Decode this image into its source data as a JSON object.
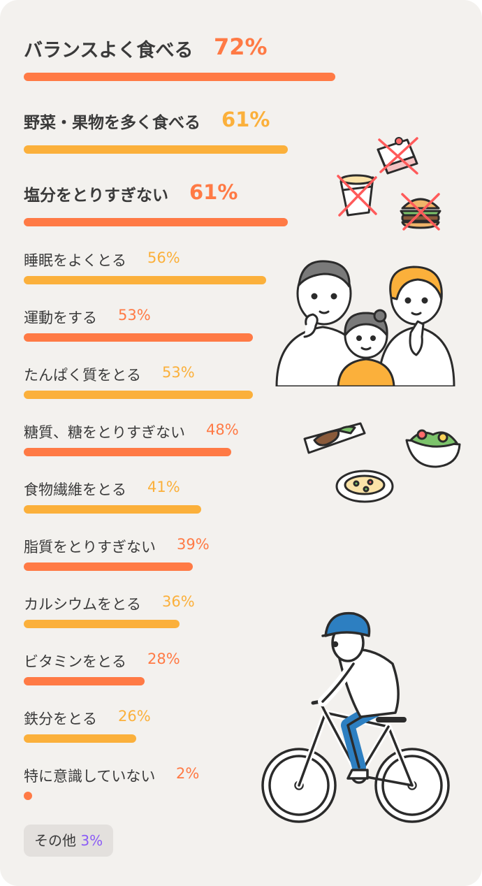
{
  "colors": {
    "accent_orange": "#ff7a45",
    "accent_yellow": "#fbb03b",
    "other_accent": "#8b5cf6",
    "background": "#f3f1ee"
  },
  "chart_data": {
    "type": "bar",
    "orientation": "horizontal",
    "categories": [
      "バランスよく食べる",
      "野菜・果物を多く食べる",
      "塩分をとりすぎない",
      "睡眠をよくとる",
      "運動をする",
      "たんぱく質をとる",
      "糖質、糖をとりすぎない",
      "食物繊維をとる",
      "脂質をとりすぎない",
      "カルシウムをとる",
      "ビタミンをとる",
      "鉄分をとる",
      "特に意識していない"
    ],
    "values": [
      72,
      61,
      61,
      56,
      53,
      53,
      48,
      41,
      39,
      36,
      28,
      26,
      2
    ],
    "value_labels": [
      "72%",
      "61%",
      "61%",
      "56%",
      "53%",
      "53%",
      "48%",
      "41%",
      "39%",
      "36%",
      "28%",
      "26%",
      "2%"
    ],
    "bar_colors": [
      "#ff7a45",
      "#fbb03b",
      "#ff7a45",
      "#fbb03b",
      "#ff7a45",
      "#fbb03b",
      "#ff7a45",
      "#fbb03b",
      "#ff7a45",
      "#fbb03b",
      "#ff7a45",
      "#fbb03b",
      "#ff7a45"
    ],
    "unit": "%",
    "xlim": [
      0,
      100
    ],
    "grid": false,
    "legend": "none"
  },
  "other": {
    "label": "その他",
    "value": "3%"
  },
  "illustrations": [
    {
      "name": "crossed-out-cake-icon"
    },
    {
      "name": "crossed-out-cup-noodle-icon"
    },
    {
      "name": "crossed-out-burger-icon"
    },
    {
      "name": "family-illustration"
    },
    {
      "name": "grilled-fish-plate-icon"
    },
    {
      "name": "salad-bowl-icon"
    },
    {
      "name": "pasta-plate-icon"
    },
    {
      "name": "cyclist-illustration"
    }
  ]
}
